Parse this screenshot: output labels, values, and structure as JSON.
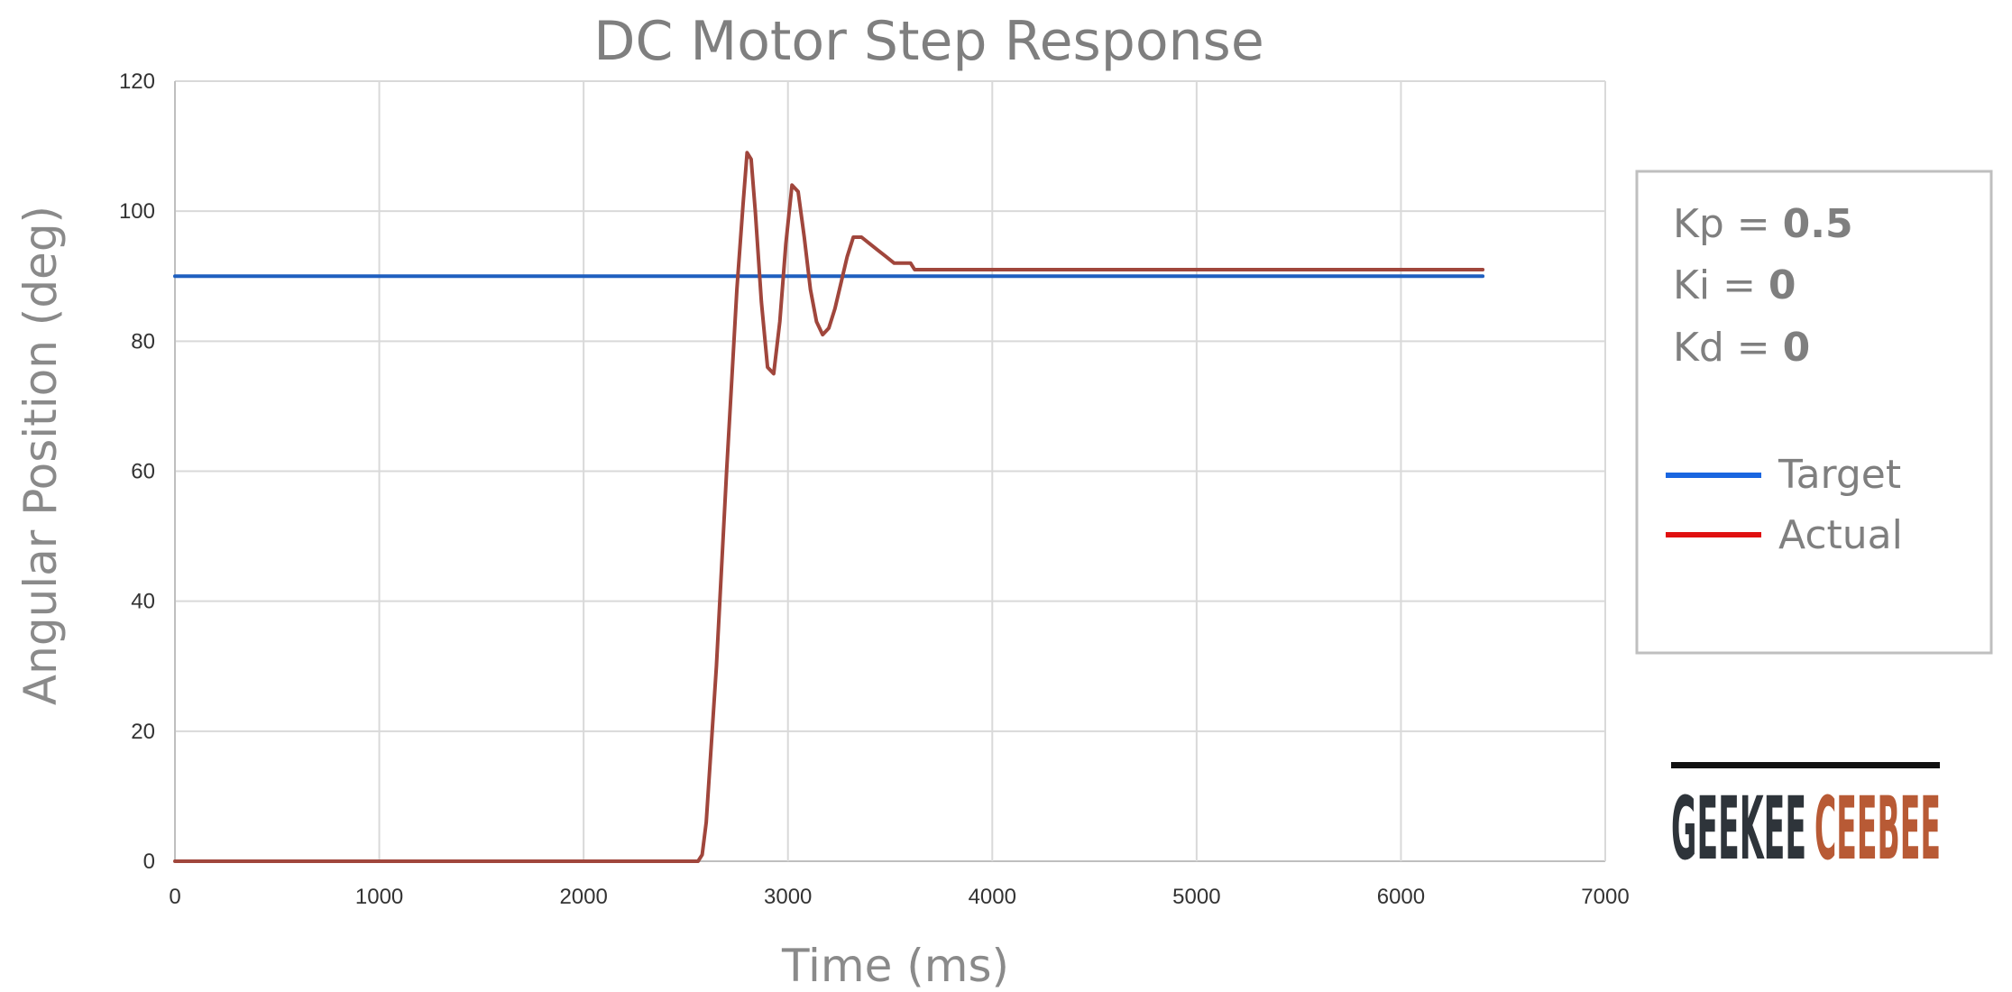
{
  "chart_data": {
    "type": "line",
    "title": "DC Motor Step Response",
    "xlabel": "Time (ms)",
    "ylabel": "Angular Position (deg)",
    "xlim": [
      0,
      7000
    ],
    "ylim": [
      0,
      120
    ],
    "xticks": [
      0,
      1000,
      2000,
      3000,
      4000,
      5000,
      6000,
      7000
    ],
    "yticks": [
      0,
      20,
      40,
      60,
      80,
      100,
      120
    ],
    "grid": true,
    "legend_position": "right",
    "series": [
      {
        "name": "Target",
        "color": "#1f5fbf",
        "x": [
          0,
          6400
        ],
        "y": [
          90,
          90
        ]
      },
      {
        "name": "Actual",
        "color": "#a0463c",
        "x": [
          0,
          2540,
          2560,
          2580,
          2600,
          2650,
          2700,
          2750,
          2780,
          2800,
          2820,
          2840,
          2870,
          2900,
          2930,
          2960,
          2990,
          3020,
          3050,
          3080,
          3110,
          3140,
          3170,
          3200,
          3230,
          3260,
          3290,
          3320,
          3360,
          3400,
          3440,
          3480,
          3520,
          3560,
          3600,
          3620,
          3640,
          3700,
          4000,
          5000,
          6000,
          6400
        ],
        "y": [
          0,
          0,
          0,
          1,
          6,
          30,
          60,
          88,
          101,
          109,
          108,
          100,
          86,
          76,
          75,
          83,
          95,
          104,
          103,
          96,
          88,
          83,
          81,
          82,
          85,
          89,
          93,
          96,
          96,
          95,
          94,
          93,
          92,
          92,
          92,
          91,
          91,
          91,
          91,
          91,
          91,
          91
        ]
      }
    ]
  },
  "params": {
    "kp_label": "Kp = ",
    "kp_value": "0.5",
    "ki_label": "Ki = ",
    "ki_value": "0",
    "kd_label": "Kd = ",
    "kd_value": "0"
  },
  "legend": {
    "target_label": "Target",
    "target_color": "#1a66e0",
    "actual_label": "Actual",
    "actual_color": "#e01010"
  },
  "logo": {
    "word1": "GEEKEE",
    "word2": "CEEBEE",
    "color1": "#2e343a",
    "color2": "#b85a35"
  }
}
